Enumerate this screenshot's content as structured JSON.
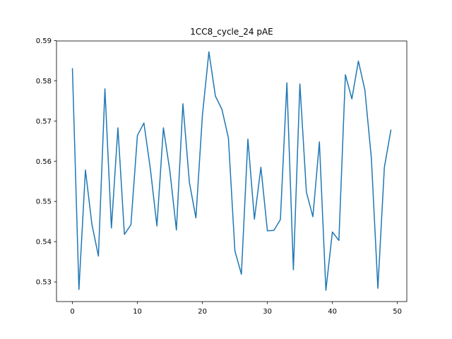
{
  "chart_data": {
    "type": "line",
    "title": "1CC8_cycle_24 pAE",
    "xlabel": "",
    "ylabel": "",
    "xlim": [
      -2.45,
      51.45
    ],
    "ylim": [
      0.5251,
      0.5899
    ],
    "xticks": [
      0,
      10,
      20,
      30,
      40,
      50
    ],
    "xtick_labels": [
      "0",
      "10",
      "20",
      "30",
      "40",
      "50"
    ],
    "yticks": [
      0.53,
      0.54,
      0.55,
      0.56,
      0.57,
      0.58,
      0.59
    ],
    "ytick_labels": [
      "0.53",
      "0.54",
      "0.55",
      "0.56",
      "0.57",
      "0.58",
      "0.59"
    ],
    "grid": false,
    "legend": "none",
    "series_color": "#1f77b4",
    "x": [
      0,
      1,
      2,
      3,
      4,
      5,
      6,
      7,
      8,
      9,
      10,
      11,
      12,
      13,
      14,
      15,
      16,
      17,
      18,
      19,
      20,
      21,
      22,
      23,
      24,
      25,
      26,
      27,
      28,
      29,
      30,
      31,
      32,
      33,
      34,
      35,
      36,
      37,
      38,
      39,
      40,
      41,
      42,
      43,
      44,
      45,
      46,
      47,
      48,
      49
    ],
    "values": [
      0.583,
      0.5281,
      0.5578,
      0.5443,
      0.5364,
      0.578,
      0.5434,
      0.5683,
      0.5418,
      0.5442,
      0.5664,
      0.5695,
      0.558,
      0.5439,
      0.5683,
      0.5575,
      0.5429,
      0.5743,
      0.5547,
      0.5459,
      0.5714,
      0.5872,
      0.5762,
      0.5729,
      0.5658,
      0.5377,
      0.5319,
      0.5655,
      0.5456,
      0.5585,
      0.5427,
      0.5428,
      0.5455,
      0.5795,
      0.533,
      0.5792,
      0.5523,
      0.5462,
      0.5648,
      0.5279,
      0.5424,
      0.5403,
      0.5815,
      0.5755,
      0.5849,
      0.5777,
      0.5607,
      0.5284,
      0.5585,
      0.5677
    ]
  }
}
